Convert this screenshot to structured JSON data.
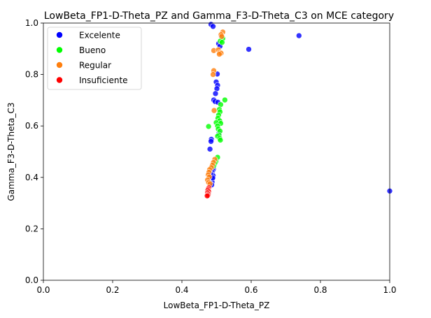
{
  "chart_data": {
    "type": "scatter",
    "title": "LowBeta_FP1-D-Theta_PZ and Gamma_F3-D-Theta_C3 on MCE category",
    "xlabel": "LowBeta_FP1-D-Theta_PZ",
    "ylabel": "Gamma_F3-D-Theta_C3",
    "xlim": [
      0.0,
      1.0
    ],
    "ylim": [
      0.0,
      1.0
    ],
    "xticks": [
      "0.0",
      "0.2",
      "0.4",
      "0.6",
      "0.8",
      "1.0"
    ],
    "yticks": [
      "0.0",
      "0.2",
      "0.4",
      "0.6",
      "0.8",
      "1.0"
    ],
    "grid": false,
    "legend_position": "top-left",
    "series": [
      {
        "name": "Excelente",
        "color": "#0000ff",
        "points": [
          [
            0.484,
            0.995
          ],
          [
            0.49,
            0.987
          ],
          [
            0.506,
            0.92
          ],
          [
            0.51,
            0.91
          ],
          [
            0.514,
            0.948
          ],
          [
            0.593,
            0.898
          ],
          [
            0.738,
            0.951
          ],
          [
            1.0,
            0.347
          ],
          [
            0.502,
            0.802
          ],
          [
            0.499,
            0.771
          ],
          [
            0.503,
            0.758
          ],
          [
            0.501,
            0.745
          ],
          [
            0.497,
            0.726
          ],
          [
            0.492,
            0.701
          ],
          [
            0.496,
            0.695
          ],
          [
            0.504,
            0.692
          ],
          [
            0.507,
            0.571
          ],
          [
            0.485,
            0.548
          ],
          [
            0.484,
            0.54
          ],
          [
            0.481,
            0.51
          ],
          [
            0.491,
            0.432
          ],
          [
            0.489,
            0.426
          ],
          [
            0.487,
            0.42
          ],
          [
            0.486,
            0.413
          ],
          [
            0.49,
            0.407
          ],
          [
            0.484,
            0.4
          ],
          [
            0.488,
            0.394
          ],
          [
            0.483,
            0.389
          ],
          [
            0.487,
            0.382
          ],
          [
            0.481,
            0.378
          ],
          [
            0.486,
            0.371
          ],
          [
            0.483,
            0.412
          ],
          [
            0.489,
            0.398
          ]
        ]
      },
      {
        "name": "Bueno",
        "color": "#00ff00",
        "points": [
          [
            0.518,
            0.94
          ],
          [
            0.511,
            0.93
          ],
          [
            0.516,
            0.925
          ],
          [
            0.524,
            0.701
          ],
          [
            0.512,
            0.683
          ],
          [
            0.508,
            0.664
          ],
          [
            0.51,
            0.655
          ],
          [
            0.506,
            0.642
          ],
          [
            0.504,
            0.63
          ],
          [
            0.509,
            0.62
          ],
          [
            0.499,
            0.613
          ],
          [
            0.512,
            0.61
          ],
          [
            0.503,
            0.6
          ],
          [
            0.477,
            0.598
          ],
          [
            0.505,
            0.588
          ],
          [
            0.51,
            0.58
          ],
          [
            0.507,
            0.565
          ],
          [
            0.503,
            0.56
          ],
          [
            0.509,
            0.552
          ],
          [
            0.511,
            0.545
          ],
          [
            0.503,
            0.478
          ],
          [
            0.498,
            0.462
          ],
          [
            0.495,
            0.455
          ],
          [
            0.492,
            0.445
          ]
        ]
      },
      {
        "name": "Regular",
        "color": "#ff7f0e",
        "points": [
          [
            0.518,
            0.965
          ],
          [
            0.513,
            0.955
          ],
          [
            0.515,
            0.948
          ],
          [
            0.492,
            0.893
          ],
          [
            0.505,
            0.896
          ],
          [
            0.509,
            0.885
          ],
          [
            0.513,
            0.883
          ],
          [
            0.508,
            0.879
          ],
          [
            0.492,
            0.815
          ],
          [
            0.49,
            0.8
          ],
          [
            0.493,
            0.66
          ],
          [
            0.495,
            0.47
          ],
          [
            0.491,
            0.458
          ],
          [
            0.488,
            0.447
          ],
          [
            0.485,
            0.438
          ],
          [
            0.48,
            0.43
          ],
          [
            0.478,
            0.42
          ],
          [
            0.476,
            0.41
          ],
          [
            0.479,
            0.402
          ],
          [
            0.474,
            0.39
          ],
          [
            0.477,
            0.38
          ],
          [
            0.481,
            0.375
          ]
        ]
      },
      {
        "name": "Insuficiente",
        "color": "#ff0000",
        "points": [
          [
            0.478,
            0.36
          ],
          [
            0.476,
            0.355
          ],
          [
            0.475,
            0.35
          ],
          [
            0.477,
            0.345
          ],
          [
            0.474,
            0.34
          ],
          [
            0.476,
            0.335
          ],
          [
            0.475,
            0.33
          ],
          [
            0.473,
            0.328
          ]
        ]
      }
    ]
  }
}
